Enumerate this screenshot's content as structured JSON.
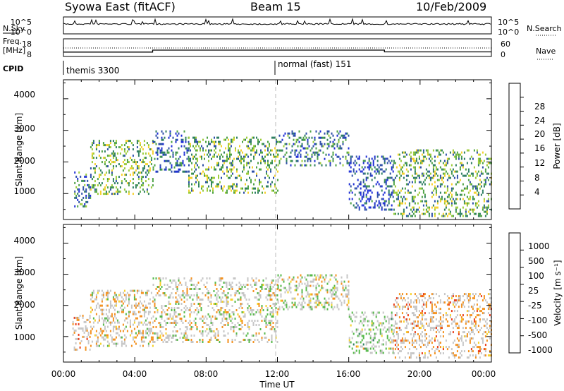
{
  "header": {
    "station": "Syowa East (fitACF)",
    "beam": "Beam 15",
    "date": "10/Feb/2009"
  },
  "side_labels": {
    "nsky": "N.Sky",
    "nsearch": "N.Search",
    "freq_line1": "Freq.",
    "freq_line2": "[MHz]",
    "nave": "Nave",
    "cpid": "CPID"
  },
  "noise_panel": {
    "left_ticks": [
      "10^5",
      "10^0"
    ],
    "right_ticks": [
      "10^5",
      "10^0"
    ]
  },
  "freq_panel": {
    "left_ticks": [
      "18",
      "8"
    ],
    "right_ticks": [
      "60",
      "0"
    ],
    "freq_mhz": [
      {
        "t_start": 0.0,
        "t_end": 5.0,
        "value": 10.5
      },
      {
        "t_start": 5.0,
        "t_end": 18.0,
        "value": 11.6
      },
      {
        "t_start": 18.0,
        "t_end": 24.0,
        "value": 10.6
      }
    ]
  },
  "cpid_panel": {
    "segments": [
      {
        "label": "themis 3300",
        "t_start": 0.0
      },
      {
        "label": "normal (fast) 151",
        "t_start": 12.0
      }
    ]
  },
  "axes": {
    "x_label": "Time UT",
    "x_ticks": [
      "00:00",
      "04:00",
      "08:00",
      "12:00",
      "16:00",
      "20:00",
      "00:00"
    ],
    "x_range_hours": [
      0,
      24
    ],
    "y_label": "Slant Range [km]",
    "y_ticks": [
      "1000",
      "2000",
      "3000",
      "4000"
    ],
    "y_range_km": [
      180,
      4600
    ]
  },
  "colorbars": {
    "power": {
      "title": "Power [dB]",
      "ticks": [
        "4",
        "8",
        "12",
        "16",
        "20",
        "24",
        "28"
      ],
      "colors": [
        "#1f2fd6",
        "#2e4fa8",
        "#2f7f62",
        "#4ea245",
        "#9ccc3a",
        "#f5d02a",
        "#f39a1f",
        "#ec5a19",
        "#e2231a"
      ]
    },
    "velocity": {
      "title": "Velocity [m s⁻¹]",
      "ticks": [
        "1000",
        "500",
        "100",
        "25",
        "-25",
        "-100",
        "-500",
        "-1000"
      ],
      "colors": [
        "#1f3fd6",
        "#2f7f62",
        "#56b94a",
        "#c6c6c6",
        "#f6d12a",
        "#f3911f",
        "#ea3d19"
      ]
    }
  },
  "chart_data": [
    {
      "type": "heatmap",
      "title": "Power [dB]",
      "xlabel": "Time UT",
      "ylabel": "Slant Range [km]",
      "xlim": [
        0,
        24
      ],
      "ylim": [
        180,
        4600
      ],
      "colorbar_ticks": [
        4,
        8,
        12,
        16,
        20,
        24,
        28
      ],
      "echo_regions": [
        {
          "t_start": 0.6,
          "t_end": 1.5,
          "r_low": 600,
          "r_high": 1700,
          "db_typical": 10
        },
        {
          "t_start": 1.5,
          "t_end": 5.0,
          "r_low": 1000,
          "r_high": 2700,
          "db_typical": 15
        },
        {
          "t_start": 5.0,
          "t_end": 7.0,
          "r_low": 1700,
          "r_high": 3000,
          "db_typical": 8
        },
        {
          "t_start": 7.0,
          "t_end": 12.0,
          "r_low": 1000,
          "r_high": 2800,
          "db_typical": 14
        },
        {
          "t_start": 12.0,
          "t_end": 16.0,
          "r_low": 1900,
          "r_high": 3000,
          "db_typical": 10
        },
        {
          "t_start": 16.0,
          "t_end": 18.5,
          "r_low": 500,
          "r_high": 2200,
          "db_typical": 6
        },
        {
          "t_start": 18.5,
          "t_end": 24.0,
          "r_low": 300,
          "r_high": 2400,
          "db_typical": 14
        }
      ]
    },
    {
      "type": "heatmap",
      "title": "Velocity [m s⁻¹]",
      "xlabel": "Time UT",
      "ylabel": "Slant Range [km]",
      "xlim": [
        0,
        24
      ],
      "ylim": [
        180,
        4600
      ],
      "colorbar_ticks": [
        1000,
        500,
        100,
        25,
        -25,
        -100,
        -500,
        -1000
      ],
      "echo_regions": [
        {
          "t_start": 0.5,
          "t_end": 1.5,
          "r_low": 600,
          "r_high": 1700,
          "vel_typical": -300
        },
        {
          "t_start": 1.5,
          "t_end": 5.0,
          "r_low": 700,
          "r_high": 2500,
          "vel_typical": -80
        },
        {
          "t_start": 5.0,
          "t_end": 12.0,
          "r_low": 800,
          "r_high": 2900,
          "vel_typical": 0
        },
        {
          "t_start": 12.0,
          "t_end": 16.0,
          "r_low": 1900,
          "r_high": 3000,
          "vel_typical": 0
        },
        {
          "t_start": 16.0,
          "t_end": 18.5,
          "r_low": 500,
          "r_high": 1800,
          "vel_typical": 120
        },
        {
          "t_start": 18.5,
          "t_end": 24.0,
          "r_low": 300,
          "r_high": 2400,
          "vel_typical": -150
        }
      ]
    }
  ]
}
